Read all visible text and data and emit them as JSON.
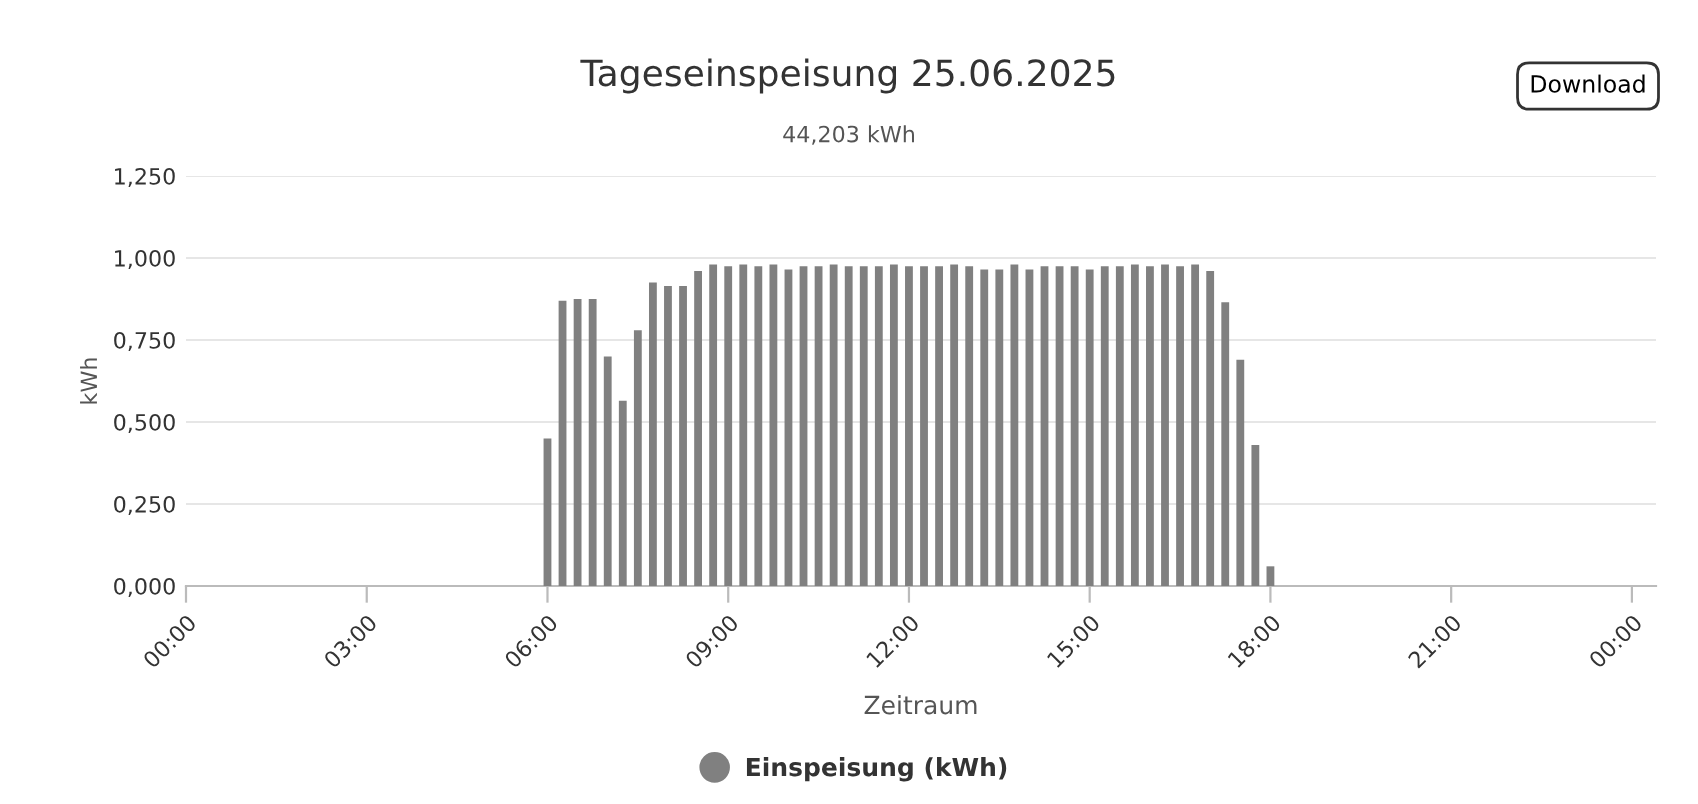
{
  "chart_data": {
    "type": "bar",
    "title": "Tageseinspeisung 25.06.2025",
    "subtitle": "44,203 kWh",
    "xlabel": "Zeitraum",
    "ylabel": "kWh",
    "annotations": [
      "Download"
    ],
    "x": [
      6,
      6.25,
      6.5,
      6.75,
      7,
      7.25,
      7.5,
      7.75,
      8,
      8.25,
      8.5,
      8.75,
      9,
      9.25,
      9.5,
      9.75,
      10,
      10.25,
      10.5,
      10.75,
      11,
      11.25,
      11.5,
      11.75,
      12,
      12.25,
      12.5,
      12.75,
      13,
      13.25,
      13.5,
      13.75,
      14,
      14.25,
      14.5,
      14.75,
      15,
      15.25,
      15.5,
      15.75,
      16,
      16.25,
      16.5,
      16.75,
      17,
      17.25,
      17.5,
      17.75,
      18
    ],
    "series": [
      {
        "name": "Einspeisung (kWh)",
        "color": "#808080",
        "values": [
          0.45,
          0.87,
          0.875,
          0.875,
          0.7,
          0.565,
          0.78,
          0.925,
          0.915,
          0.915,
          0.96,
          0.98,
          0.975,
          0.98,
          0.975,
          0.98,
          0.965,
          0.975,
          0.975,
          0.98,
          0.975,
          0.975,
          0.975,
          0.98,
          0.975,
          0.975,
          0.975,
          0.98,
          0.975,
          0.965,
          0.965,
          0.98,
          0.965,
          0.975,
          0.975,
          0.975,
          0.965,
          0.975,
          0.975,
          0.98,
          0.975,
          0.98,
          0.975,
          0.98,
          0.96,
          0.865,
          0.69,
          0.43,
          0.06
        ]
      }
    ],
    "xlim": [
      0,
      24.4
    ],
    "xticks": [
      {
        "value": 0,
        "label": "00:00"
      },
      {
        "value": 3,
        "label": "03:00"
      },
      {
        "value": 6,
        "label": "06:00"
      },
      {
        "value": 9,
        "label": "09:00"
      },
      {
        "value": 12,
        "label": "12:00"
      },
      {
        "value": 15,
        "label": "15:00"
      },
      {
        "value": 18,
        "label": "18:00"
      },
      {
        "value": 21,
        "label": "21:00"
      },
      {
        "value": 24,
        "label": "00:00"
      }
    ],
    "ylim": [
      0,
      1.25
    ],
    "yticks": [
      {
        "value": 0,
        "label": "0,000"
      },
      {
        "value": 0.25,
        "label": "0,250"
      },
      {
        "value": 0.5,
        "label": "0,500"
      },
      {
        "value": 0.75,
        "label": "0,750"
      },
      {
        "value": 1.0,
        "label": "1,000"
      },
      {
        "value": 1.25,
        "label": "1,250"
      }
    ],
    "grid": "y",
    "legend": "bottom"
  }
}
